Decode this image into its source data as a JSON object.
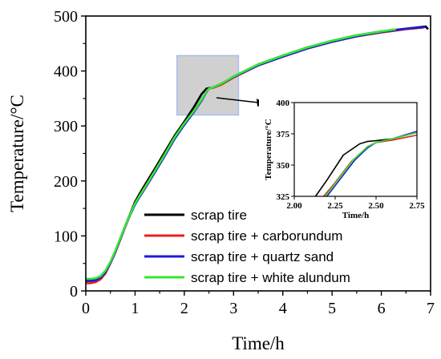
{
  "chart_data": [
    {
      "type": "line",
      "xlabel": "Time/h",
      "ylabel": "Temperature/°C",
      "xlim": [
        0,
        7
      ],
      "ylim": [
        0,
        500
      ],
      "xticks": [
        "0",
        "1",
        "2",
        "3",
        "4",
        "5",
        "6",
        "7"
      ],
      "yticks": [
        "0",
        "100",
        "200",
        "300",
        "400",
        "500"
      ],
      "legend_position": "bottom-center",
      "grid": false,
      "highlight_region": {
        "x": [
          1.85,
          3.1
        ],
        "y": [
          320,
          428
        ],
        "color": "#d0d0d0",
        "border": "#a9c0f0"
      },
      "series": [
        {
          "name": "scrap tire",
          "color": "#000000",
          "x": [
            0,
            0.1,
            0.2,
            0.3,
            0.4,
            0.5,
            0.6,
            0.7,
            0.8,
            0.9,
            1.0,
            1.1,
            1.2,
            1.4,
            1.6,
            1.8,
            2.0,
            2.2,
            2.35,
            2.45,
            2.5,
            2.6,
            2.75,
            3.0,
            3.5,
            4.0,
            4.5,
            5.0,
            5.5,
            6.0,
            6.5,
            6.9,
            6.95
          ],
          "y": [
            20,
            20,
            21,
            25,
            35,
            52,
            72,
            95,
            118,
            140,
            162,
            178,
            193,
            222,
            252,
            282,
            308,
            335,
            358,
            368,
            369,
            370,
            376,
            390,
            412,
            428,
            443,
            455,
            465,
            472,
            477,
            481,
            476
          ]
        },
        {
          "name": "scrap tire + carborundum",
          "color": "#e8201b",
          "x": [
            0,
            0.1,
            0.2,
            0.3,
            0.4,
            0.5,
            0.6,
            0.7,
            0.8,
            0.9,
            1.0,
            1.1,
            1.2,
            1.4,
            1.6,
            1.8,
            2.0,
            2.2,
            2.35,
            2.45,
            2.5,
            2.6,
            2.75,
            3.0,
            3.5,
            4.0,
            4.5,
            5.0,
            5.5,
            6.0,
            6.5,
            6.85
          ],
          "y": [
            14,
            14,
            16,
            21,
            32,
            50,
            70,
            93,
            116,
            138,
            158,
            174,
            189,
            218,
            248,
            278,
            304,
            328,
            348,
            362,
            368,
            370,
            375,
            388,
            410,
            426,
            441,
            453,
            463,
            470,
            476,
            479
          ]
        },
        {
          "name": "scrap tire + quartz sand",
          "color": "#1c1cd8",
          "x": [
            0,
            0.1,
            0.2,
            0.3,
            0.4,
            0.5,
            0.6,
            0.7,
            0.8,
            0.9,
            1.0,
            1.1,
            1.2,
            1.4,
            1.6,
            1.8,
            2.0,
            2.2,
            2.35,
            2.45,
            2.5,
            2.6,
            2.75,
            3.0,
            3.5,
            4.0,
            4.5,
            5.0,
            5.5,
            6.0,
            6.5,
            6.9
          ],
          "y": [
            18,
            18,
            19,
            24,
            34,
            51,
            71,
            94,
            117,
            138,
            157,
            172,
            186,
            215,
            245,
            276,
            302,
            326,
            346,
            362,
            368,
            371,
            377,
            389,
            410,
            426,
            441,
            453,
            463,
            471,
            477,
            480
          ]
        },
        {
          "name": "scrap tire + white alundum",
          "color": "#33e833",
          "x": [
            0,
            0.1,
            0.2,
            0.3,
            0.4,
            0.5,
            0.6,
            0.7,
            0.8,
            0.9,
            1.0,
            1.1,
            1.2,
            1.4,
            1.6,
            1.8,
            2.0,
            2.2,
            2.35,
            2.45,
            2.5,
            2.6,
            2.75,
            3.0,
            3.5,
            4.0,
            4.5,
            5.0,
            5.5,
            6.0,
            6.3
          ],
          "y": [
            22,
            22,
            23,
            27,
            37,
            53,
            73,
            96,
            118,
            139,
            159,
            174,
            188,
            218,
            248,
            279,
            305,
            328,
            348,
            363,
            368,
            371,
            377,
            390,
            412,
            428,
            443,
            455,
            465,
            472,
            476
          ]
        }
      ]
    },
    {
      "type": "line",
      "xlabel": "Time/h",
      "ylabel": "Temperature/°C",
      "xlim": [
        2.0,
        2.75
      ],
      "ylim": [
        325,
        400
      ],
      "xticks": [
        "2.00",
        "2.25",
        "2.50",
        "2.75"
      ],
      "yticks": [
        "325",
        "350",
        "375",
        "400"
      ],
      "series": [
        {
          "name": "scrap tire",
          "color": "#000000",
          "x": [
            2.13,
            2.2,
            2.3,
            2.4,
            2.45,
            2.5,
            2.6,
            2.75
          ],
          "y": [
            325,
            338,
            358,
            367,
            369,
            369.5,
            371,
            376
          ]
        },
        {
          "name": "scrap tire + carborundum",
          "color": "#e8201b",
          "x": [
            2.18,
            2.25,
            2.35,
            2.45,
            2.5,
            2.6,
            2.75
          ],
          "y": [
            325,
            336,
            353,
            365,
            368,
            370,
            374
          ]
        },
        {
          "name": "scrap tire + quartz sand",
          "color": "#1c1cd8",
          "x": [
            2.2,
            2.27,
            2.37,
            2.45,
            2.5,
            2.6,
            2.75
          ],
          "y": [
            325,
            337,
            354,
            364,
            368,
            371,
            377
          ]
        },
        {
          "name": "scrap tire + white alundum",
          "color": "#33e833",
          "x": [
            2.19,
            2.26,
            2.36,
            2.45,
            2.5,
            2.6,
            2.75
          ],
          "y": [
            325,
            337,
            354,
            365,
            368,
            371,
            376
          ]
        }
      ]
    }
  ]
}
